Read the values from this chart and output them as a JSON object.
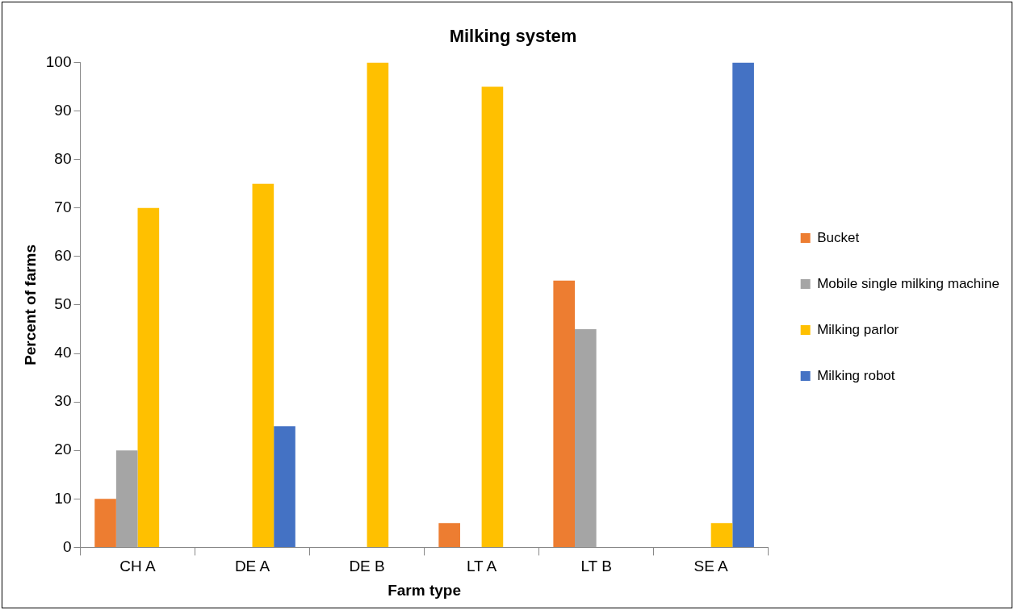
{
  "chart_data": {
    "type": "bar",
    "title": "Milking system",
    "xlabel": "Farm type",
    "ylabel": "Percent of farms",
    "categories": [
      "CH A",
      "DE A",
      "DE B",
      "LT A",
      "LT B",
      "SE A"
    ],
    "series": [
      {
        "name": "Bucket",
        "color": "#ed7d31",
        "values": [
          10,
          0,
          0,
          5,
          55,
          0
        ]
      },
      {
        "name": "Mobile single milking machine",
        "color": "#a5a5a5",
        "values": [
          20,
          0,
          0,
          0,
          45,
          0
        ]
      },
      {
        "name": "Milking parlor",
        "color": "#ffc000",
        "values": [
          70,
          75,
          100,
          95,
          0,
          5
        ]
      },
      {
        "name": "Milking robot",
        "color": "#4472c4",
        "values": [
          0,
          25,
          0,
          0,
          0,
          100
        ]
      }
    ],
    "ylim": [
      0,
      100
    ],
    "yticks": [
      0,
      10,
      20,
      30,
      40,
      50,
      60,
      70,
      80,
      90,
      100
    ],
    "grid": false,
    "legend": "right"
  }
}
